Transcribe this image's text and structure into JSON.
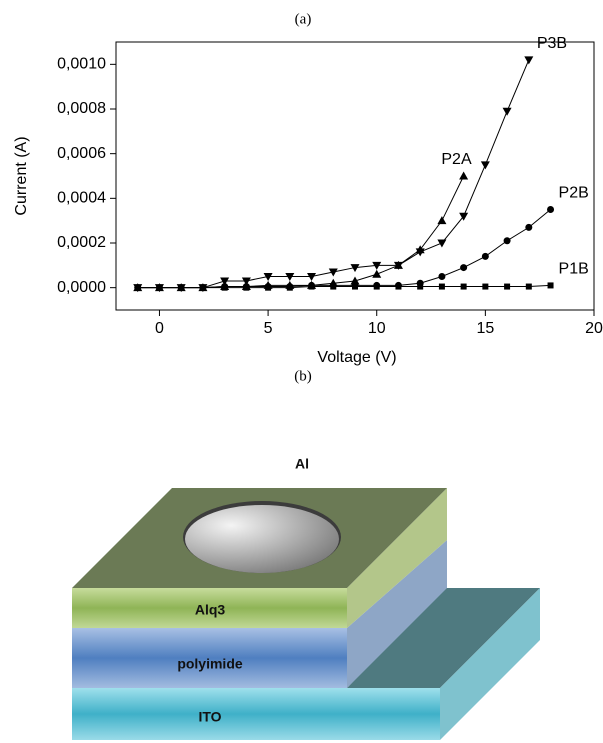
{
  "chart_data": {
    "type": "line",
    "panel_label": "(a)",
    "x_label": "Voltage (V)",
    "y_label": "Current (A)",
    "xlim": [
      -2,
      20
    ],
    "xticks": [
      0,
      5,
      10,
      15,
      20
    ],
    "ylim": [
      -0.0001,
      0.0011
    ],
    "yticks": [
      {
        "value": 0,
        "label": "0,0000"
      },
      {
        "value": 0.0002,
        "label": "0,0002"
      },
      {
        "value": 0.0004,
        "label": "0,0004"
      },
      {
        "value": 0.0006,
        "label": "0,0006"
      },
      {
        "value": 0.0008,
        "label": "0,0008"
      },
      {
        "value": 0.001,
        "label": "0,0010"
      }
    ],
    "series": [
      {
        "name": "P1B",
        "color": "#000000",
        "marker": "square",
        "x": [
          -1,
          0,
          1,
          2,
          3,
          4,
          5,
          6,
          7,
          8,
          9,
          10,
          11,
          12,
          13,
          14,
          15,
          16,
          17,
          18
        ],
        "values": [
          0,
          0,
          0,
          0,
          0,
          0,
          0,
          0,
          5e-06,
          5e-06,
          5e-06,
          5e-06,
          5e-06,
          5e-06,
          5e-06,
          5e-06,
          5e-06,
          5e-06,
          5e-06,
          1e-05
        ]
      },
      {
        "name": "P2B",
        "color": "#000000",
        "marker": "circle",
        "x": [
          -1,
          0,
          1,
          2,
          3,
          4,
          5,
          6,
          7,
          8,
          9,
          10,
          11,
          12,
          13,
          14,
          15,
          16,
          17,
          18
        ],
        "values": [
          0,
          0,
          0,
          0,
          5e-06,
          5e-06,
          5e-06,
          5e-06,
          1e-05,
          1e-05,
          1e-05,
          1e-05,
          1e-05,
          2e-05,
          5e-05,
          9e-05,
          0.00014,
          0.00021,
          0.00027,
          0.00035
        ]
      },
      {
        "name": "P2A",
        "color": "#000000",
        "marker": "triangle-up",
        "x": [
          -1,
          0,
          1,
          2,
          3,
          4,
          5,
          6,
          7,
          8,
          9,
          10,
          11,
          12,
          13,
          14
        ],
        "values": [
          0,
          0,
          0,
          0,
          5e-06,
          5e-06,
          1e-05,
          1e-05,
          1e-05,
          2e-05,
          3e-05,
          6e-05,
          0.0001,
          0.00017,
          0.0003,
          0.0005
        ]
      },
      {
        "name": "P3B",
        "color": "#000000",
        "marker": "triangle-down",
        "x": [
          -1,
          0,
          1,
          2,
          3,
          4,
          5,
          6,
          7,
          8,
          9,
          10,
          11,
          12,
          13,
          14,
          15,
          16,
          17
        ],
        "values": [
          0,
          0,
          0,
          0,
          3e-05,
          3e-05,
          5e-05,
          5e-05,
          5e-05,
          7e-05,
          9e-05,
          0.0001,
          0.0001,
          0.00016,
          0.0002,
          0.00032,
          0.00055,
          0.00079,
          0.00102
        ]
      }
    ]
  },
  "diagram": {
    "panel_label": "(b)",
    "labels": {
      "top": "Al",
      "layer1": "Alq3",
      "layer2": "polyimide",
      "layer3": "ITO"
    }
  }
}
